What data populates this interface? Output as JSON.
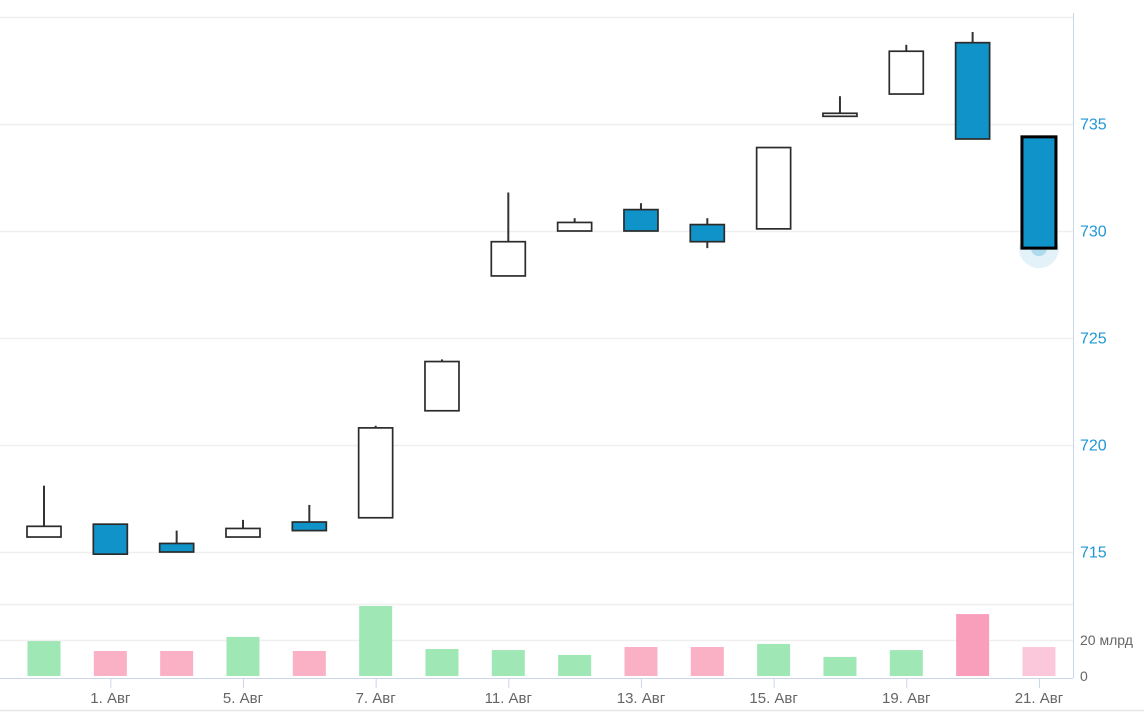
{
  "chart_data": {
    "type": "candlestick",
    "title": "",
    "subtitle": "",
    "legend": "none",
    "grid": "on",
    "price_axis": {
      "position": "right",
      "tick_values": [
        735,
        730,
        725,
        720,
        715
      ],
      "tick_labels": [
        "735",
        "730",
        "725",
        "720",
        "715"
      ],
      "grid_values": [
        740,
        735,
        730,
        725,
        720,
        715
      ],
      "label_color": "#1f97d4"
    },
    "volume_axis": {
      "position": "right",
      "tick_values": [
        20,
        0
      ],
      "tick_labels": [
        "20 млрд",
        "0"
      ],
      "grid_values": [
        40,
        20
      ],
      "label_color": "#666666"
    },
    "x_ticks": [
      {
        "candle_index": 1,
        "label": "1. Авг"
      },
      {
        "candle_index": 3,
        "label": "5. Авг"
      },
      {
        "candle_index": 5,
        "label": "7. Авг"
      },
      {
        "candle_index": 7,
        "label": "11. Авг"
      },
      {
        "candle_index": 9,
        "label": "13. Авг"
      },
      {
        "candle_index": 11,
        "label": "15. Авг"
      },
      {
        "candle_index": 13,
        "label": "19. Авг"
      },
      {
        "candle_index": 15,
        "label": "21. Авг"
      }
    ],
    "candles": [
      {
        "open": 715.7,
        "high": 718.1,
        "low": 715.7,
        "close": 716.2,
        "direction": "up",
        "highlight": false
      },
      {
        "open": 716.3,
        "high": 716.3,
        "low": 714.9,
        "close": 714.9,
        "direction": "down",
        "highlight": false
      },
      {
        "open": 715.4,
        "high": 716.0,
        "low": 715.0,
        "close": 715.0,
        "direction": "down",
        "highlight": false
      },
      {
        "open": 715.7,
        "high": 716.5,
        "low": 715.7,
        "close": 716.1,
        "direction": "up",
        "highlight": false
      },
      {
        "open": 716.4,
        "high": 717.2,
        "low": 716.0,
        "close": 716.0,
        "direction": "down",
        "highlight": false
      },
      {
        "open": 716.6,
        "high": 720.9,
        "low": 716.6,
        "close": 720.8,
        "direction": "up",
        "highlight": false
      },
      {
        "open": 721.6,
        "high": 724.0,
        "low": 721.6,
        "close": 723.9,
        "direction": "up",
        "highlight": false
      },
      {
        "open": 727.9,
        "high": 731.8,
        "low": 727.9,
        "close": 729.5,
        "direction": "up",
        "highlight": false
      },
      {
        "open": 730.0,
        "high": 730.6,
        "low": 730.0,
        "close": 730.4,
        "direction": "up",
        "highlight": false
      },
      {
        "open": 731.0,
        "high": 731.3,
        "low": 730.0,
        "close": 730.0,
        "direction": "down",
        "highlight": false
      },
      {
        "open": 730.3,
        "high": 730.6,
        "low": 729.2,
        "close": 729.5,
        "direction": "down",
        "highlight": false
      },
      {
        "open": 730.1,
        "high": 733.9,
        "low": 730.1,
        "close": 733.9,
        "direction": "up",
        "highlight": false
      },
      {
        "open": 735.4,
        "high": 736.3,
        "low": 735.4,
        "close": 735.5,
        "direction": "up",
        "highlight": false
      },
      {
        "open": 736.4,
        "high": 738.7,
        "low": 736.4,
        "close": 738.4,
        "direction": "up",
        "highlight": false
      },
      {
        "open": 738.8,
        "high": 739.3,
        "low": 734.3,
        "close": 734.3,
        "direction": "down",
        "highlight": false
      },
      {
        "open": 734.4,
        "high": 734.4,
        "low": 729.2,
        "close": 729.2,
        "direction": "down",
        "highlight": true
      }
    ],
    "volume": {
      "unit": "млрд",
      "values": [
        19.4,
        13.9,
        13.9,
        21.7,
        13.9,
        38.9,
        15.0,
        14.4,
        11.7,
        16.1,
        16.1,
        17.8,
        10.6,
        14.4,
        34.4,
        16.1
      ],
      "colors": [
        "green",
        "pink",
        "pink",
        "green",
        "pink",
        "green",
        "green",
        "green",
        "green",
        "pink",
        "pink",
        "green",
        "green",
        "green",
        "pink_strong",
        "pink_light"
      ]
    },
    "palette": {
      "candle_up_fill": "#FFFFFF",
      "candle_down_fill": "#1093C8",
      "candle_border": "#2b2b2b",
      "wick": "#333333",
      "green": "#9FE7B4",
      "pink": "#FAB0C5",
      "pink_strong": "#F99FBB",
      "pink_light": "#FBC8DB",
      "grid_line": "#efefef",
      "axis_line": "#ccd6eb",
      "price_label": "#1f97d4",
      "date_label": "#666666",
      "hover_halo": "#1093C8"
    },
    "hover_marker": {
      "candle_index": 15,
      "anchored_to": "close"
    }
  }
}
